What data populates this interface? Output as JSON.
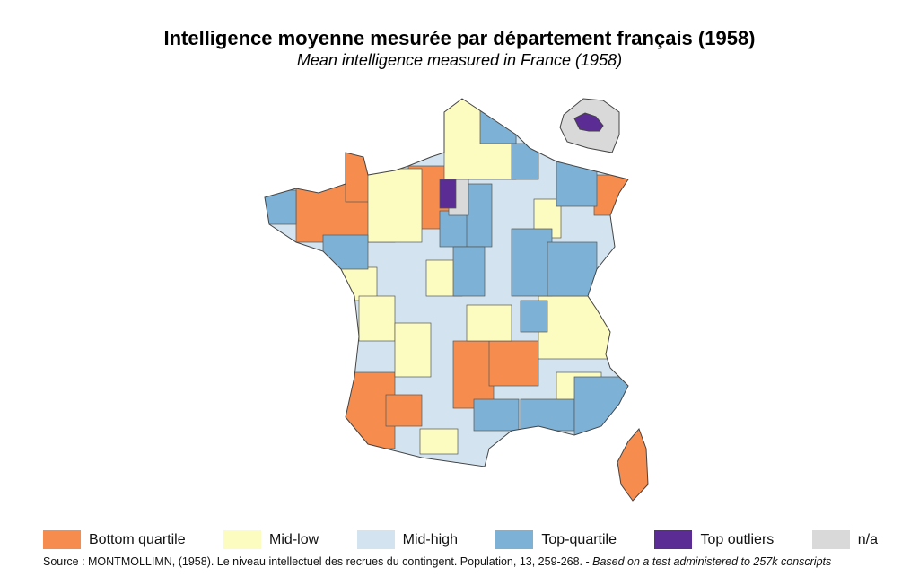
{
  "title": "Intelligence moyenne mesurée par département français (1958)",
  "subtitle": "Mean intelligence measured in France (1958)",
  "legend": [
    {
      "label": "Bottom quartile",
      "color": "#f68d4f"
    },
    {
      "label": "Mid-low",
      "color": "#fdfcc0"
    },
    {
      "label": "Mid-high",
      "color": "#d3e4f0"
    },
    {
      "label": "Top-quartile",
      "color": "#7db2d6"
    },
    {
      "label": "Top outliers",
      "color": "#5b2d94"
    },
    {
      "label": "n/a",
      "color": "#d9d9d9"
    }
  ],
  "source": {
    "text": "Source : MONTMOLLIMN, (1958). Le niveau intellectuel des recrues du contingent. Population, 13, 259-268. - ",
    "note": "Based on a test administered to 257k conscripts"
  },
  "map": {
    "inset": "Paris and inner suburbs"
  }
}
